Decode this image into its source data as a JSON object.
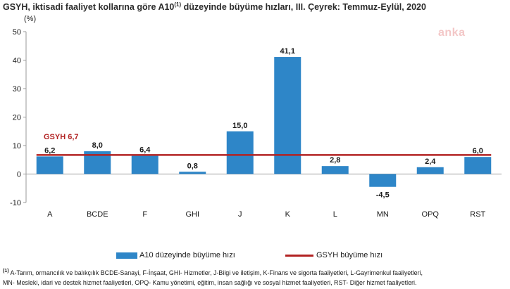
{
  "title": {
    "before": "GSYH, iktisadi faaliyet kollarına göre A10",
    "sup": "(1)",
    "after": " düzeyinde büyüme hızları, III. Çeyrek: Temmuz-Eylül, 2020"
  },
  "watermark": "anka",
  "colors": {
    "bar": "#2e86c8",
    "line": "#b22222",
    "axis": "#999999"
  },
  "chart_data": {
    "type": "bar",
    "title": "GSYH, iktisadi faaliyet kollarına göre A10(1) düzeyinde büyüme hızları, III. Çeyrek: Temmuz-Eylül, 2020",
    "ylabel": "(%)",
    "xlabel": "",
    "ylim": [
      -10,
      50
    ],
    "yticks": [
      -10,
      0,
      10,
      20,
      30,
      40,
      50
    ],
    "grid": false,
    "legend_position": "bottom",
    "categories": [
      "A",
      "BCDE",
      "F",
      "GHI",
      "J",
      "K",
      "L",
      "MN",
      "OPQ",
      "RST"
    ],
    "series": [
      {
        "name": "A10 düzeyinde büyüme hızı",
        "type": "bar",
        "values": [
          6.2,
          8.0,
          6.4,
          0.8,
          15.0,
          41.1,
          2.8,
          -4.5,
          2.4,
          6.0
        ],
        "labels": [
          "6,2",
          "8,0",
          "6,4",
          "0,8",
          "15,0",
          "41,1",
          "2,8",
          "-4,5",
          "2,4",
          "6,0"
        ]
      },
      {
        "name": "GSYH büyüme hızı",
        "type": "line",
        "value": 6.7,
        "annotation": "GSYH 6,7"
      }
    ]
  },
  "legend": {
    "bar_label": "A10 düzeyinde büyüme hızı",
    "line_label": "GSYH büyüme hızı"
  },
  "footnote": {
    "marker": "(1)",
    "line1": " A-Tarım, ormancılık ve balıkçılık BCDE-Sanayi, F-İnşaat, GHI- Hizmetler, J-Bilgi ve iletişim, K-Finans ve sigorta faaliyetleri, L-Gayrimenkul faaliyetleri,",
    "line2": "MN- Mesleki, idari ve destek hizmet faaliyetleri, OPQ- Kamu yönetimi, eğitim, insan sağlığı ve sosyal hizmet faaliyetleri, RST- Diğer hizmet faaliyetleri."
  }
}
